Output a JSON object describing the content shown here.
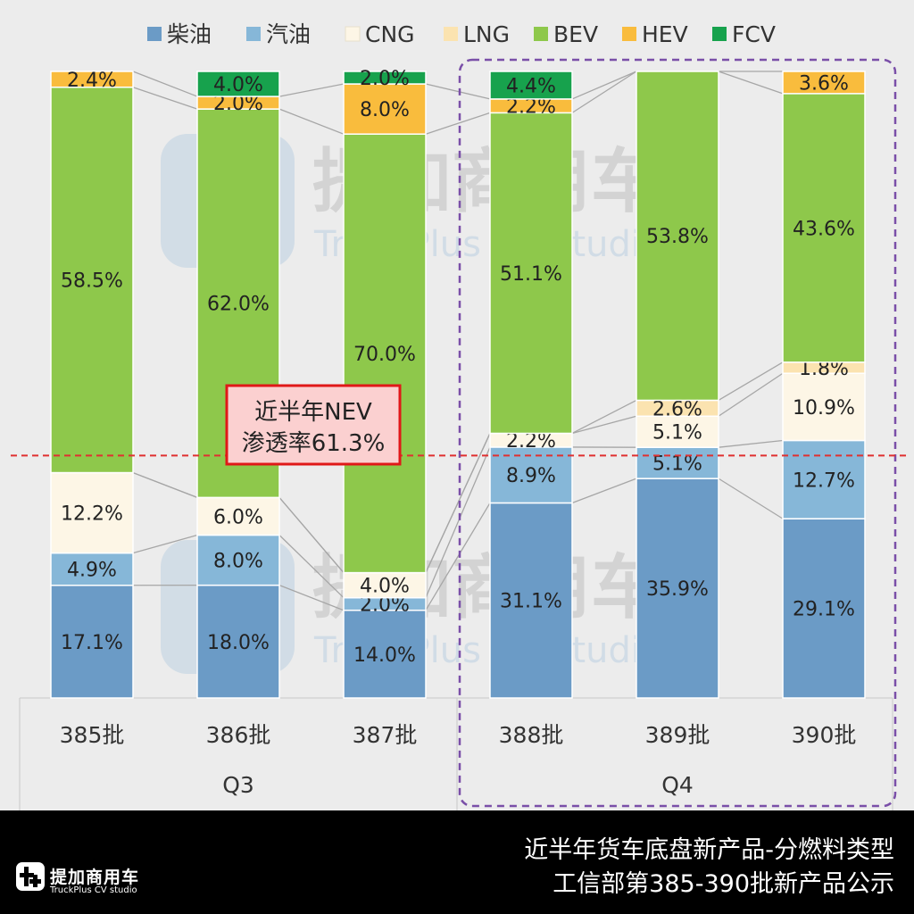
{
  "chart_data": {
    "type": "stacked-bar-100",
    "categories": [
      "385批",
      "386批",
      "387批",
      "388批",
      "389批",
      "390批"
    ],
    "groups": [
      {
        "label": "Q3",
        "members": [
          0,
          1,
          2
        ]
      },
      {
        "label": "Q4",
        "members": [
          3,
          4,
          5
        ],
        "highlighted": true
      }
    ],
    "series": [
      {
        "name": "柴油",
        "color": "#6b9bc6",
        "values": [
          17.1,
          18.0,
          14.0,
          31.1,
          35.9,
          29.1
        ],
        "labels": [
          "17.1%",
          "18.0%",
          "14.0%",
          "31.1%",
          "35.9%",
          "29.1%"
        ]
      },
      {
        "name": "汽油",
        "color": "#86b7d8",
        "values": [
          4.9,
          8.0,
          2.0,
          8.9,
          5.1,
          12.7
        ],
        "labels": [
          "4.9%",
          "8.0%",
          "2.0%",
          "8.9%",
          "5.1%",
          "12.7%"
        ]
      },
      {
        "name": "CNG",
        "color": "#fdf6e6",
        "values": [
          12.2,
          6.0,
          4.0,
          2.2,
          5.1,
          10.9
        ],
        "labels": [
          "12.2%",
          "6.0%",
          "4.0%",
          "2.2%",
          "5.1%",
          "10.9%"
        ]
      },
      {
        "name": "LNG",
        "color": "#fbe3b0",
        "values": [
          0,
          0,
          0,
          0,
          2.6,
          1.8
        ],
        "labels": [
          "",
          "",
          "",
          "",
          "2.6%",
          "1.8%"
        ]
      },
      {
        "name": "BEV",
        "color": "#8ec84b",
        "values": [
          58.5,
          62.0,
          70.0,
          51.1,
          53.8,
          43.6
        ],
        "labels": [
          "58.5%",
          "62.0%",
          "70.0%",
          "51.1%",
          "53.8%",
          "43.6%"
        ]
      },
      {
        "name": "HEV",
        "color": "#f9bc3d",
        "values": [
          2.4,
          2.0,
          8.0,
          2.2,
          0,
          3.6
        ],
        "labels": [
          "2.4%",
          "2.0%",
          "8.0%",
          "2.2%",
          "",
          "3.6%"
        ]
      },
      {
        "name": "FCV",
        "color": "#17a24d",
        "values": [
          0,
          4.0,
          2.0,
          4.4,
          0,
          0
        ],
        "labels": [
          "",
          "4.0%",
          "2.0%",
          "4.4%",
          "",
          ""
        ]
      }
    ],
    "reference_line": {
      "value": 38.7,
      "color": "#e03030",
      "style": "dashed"
    },
    "callout": {
      "line1": "近半年NEV",
      "line2": "渗透率61.3%"
    },
    "legend_position": "top",
    "watermark": {
      "cn": "提加商用车",
      "en": "TruckPlus CV studio"
    }
  },
  "footer": {
    "brand_cn": "提加商用车",
    "brand_en": "TruckPlus CV studio",
    "caption_line1": "近半年货车底盘新产品-分燃料类型",
    "caption_line2": "工信部第385-390批新产品公示"
  }
}
